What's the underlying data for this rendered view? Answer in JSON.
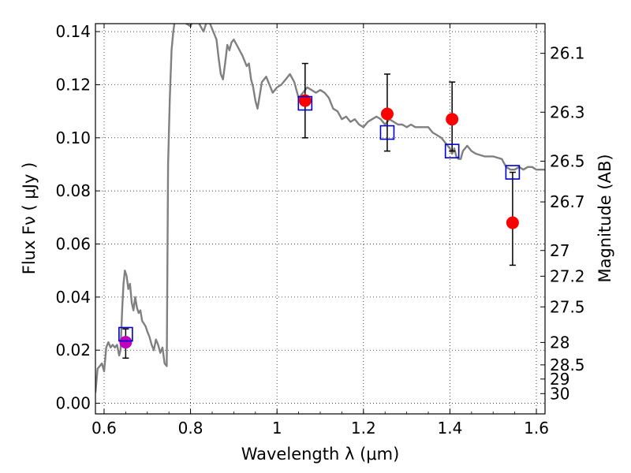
{
  "chart_data": {
    "type": "line",
    "title": "",
    "xlabel": "Wavelength  λ (μm)",
    "ylabel": "Flux  Fν  ( μJy )",
    "y2label": "Magnitude (AB)",
    "xlim": [
      0.58,
      1.62
    ],
    "ylim": [
      -0.004,
      0.143
    ],
    "grid": true,
    "legend": "none",
    "x_ticks": [
      0.6,
      0.8,
      1.0,
      1.2,
      1.4,
      1.6
    ],
    "x_tick_labels": [
      "0.6",
      "0.8",
      "1",
      "1.2",
      "1.4",
      "1.6"
    ],
    "y_ticks": [
      0.0,
      0.02,
      0.04,
      0.06,
      0.08,
      0.1,
      0.12,
      0.14
    ],
    "y_tick_labels": [
      "0.00",
      "0.02",
      "0.04",
      "0.06",
      "0.08",
      "0.10",
      "0.12",
      "0.14"
    ],
    "mag_ticks": [
      "26.1",
      "26.3",
      "26.5",
      "26.7",
      "27",
      "27.2",
      "27.5",
      "28",
      "28.5",
      "29",
      "30"
    ],
    "colors": {
      "model": "#808080",
      "observed": "#ff0000",
      "observed_first": "#bf00bf",
      "synthetic": "#0000cc",
      "errorbar": "#000000"
    },
    "series": [
      {
        "values": [
          [
            0.58,
            0.004
          ],
          [
            0.585,
            0.013
          ],
          [
            0.595,
            0.015
          ],
          [
            0.6,
            0.012
          ],
          [
            0.605,
            0.021
          ],
          [
            0.61,
            0.023
          ],
          [
            0.615,
            0.021
          ],
          [
            0.62,
            0.022
          ],
          [
            0.625,
            0.021
          ],
          [
            0.63,
            0.022
          ],
          [
            0.635,
            0.018
          ],
          [
            0.638,
            0.02
          ],
          [
            0.642,
            0.036
          ],
          [
            0.645,
            0.045
          ],
          [
            0.648,
            0.05
          ],
          [
            0.652,
            0.048
          ],
          [
            0.656,
            0.043
          ],
          [
            0.66,
            0.045
          ],
          [
            0.664,
            0.038
          ],
          [
            0.668,
            0.035
          ],
          [
            0.672,
            0.04
          ],
          [
            0.676,
            0.036
          ],
          [
            0.68,
            0.034
          ],
          [
            0.684,
            0.035
          ],
          [
            0.688,
            0.031
          ],
          [
            0.692,
            0.03
          ],
          [
            0.696,
            0.029
          ],
          [
            0.7,
            0.027
          ],
          [
            0.705,
            0.025
          ],
          [
            0.71,
            0.022
          ],
          [
            0.715,
            0.02
          ],
          [
            0.72,
            0.024
          ],
          [
            0.725,
            0.022
          ],
          [
            0.73,
            0.019
          ],
          [
            0.735,
            0.021
          ],
          [
            0.74,
            0.015
          ],
          [
            0.745,
            0.014
          ],
          [
            0.748,
            0.09
          ],
          [
            0.752,
            0.115
          ],
          [
            0.756,
            0.133
          ],
          [
            0.76,
            0.14
          ],
          [
            0.765,
            0.146
          ],
          [
            0.77,
            0.15
          ],
          [
            0.78,
            0.148
          ],
          [
            0.79,
            0.143
          ],
          [
            0.8,
            0.142
          ],
          [
            0.81,
            0.146
          ],
          [
            0.82,
            0.143
          ],
          [
            0.83,
            0.14
          ],
          [
            0.84,
            0.145
          ],
          [
            0.85,
            0.141
          ],
          [
            0.86,
            0.137
          ],
          [
            0.865,
            0.13
          ],
          [
            0.87,
            0.124
          ],
          [
            0.875,
            0.122
          ],
          [
            0.88,
            0.128
          ],
          [
            0.885,
            0.135
          ],
          [
            0.89,
            0.133
          ],
          [
            0.895,
            0.136
          ],
          [
            0.9,
            0.137
          ],
          [
            0.91,
            0.134
          ],
          [
            0.92,
            0.131
          ],
          [
            0.93,
            0.127
          ],
          [
            0.935,
            0.128
          ],
          [
            0.94,
            0.122
          ],
          [
            0.945,
            0.119
          ],
          [
            0.95,
            0.114
          ],
          [
            0.955,
            0.111
          ],
          [
            0.96,
            0.116
          ],
          [
            0.965,
            0.121
          ],
          [
            0.97,
            0.122
          ],
          [
            0.975,
            0.123
          ],
          [
            0.98,
            0.121
          ],
          [
            0.985,
            0.119
          ],
          [
            0.99,
            0.117
          ],
          [
            0.995,
            0.118
          ],
          [
            1.0,
            0.119
          ],
          [
            1.01,
            0.12
          ],
          [
            1.02,
            0.122
          ],
          [
            1.03,
            0.124
          ],
          [
            1.04,
            0.121
          ],
          [
            1.05,
            0.115
          ],
          [
            1.06,
            0.117
          ],
          [
            1.07,
            0.119
          ],
          [
            1.08,
            0.118
          ],
          [
            1.09,
            0.117
          ],
          [
            1.1,
            0.118
          ],
          [
            1.11,
            0.117
          ],
          [
            1.12,
            0.115
          ],
          [
            1.13,
            0.111
          ],
          [
            1.14,
            0.11
          ],
          [
            1.15,
            0.107
          ],
          [
            1.16,
            0.108
          ],
          [
            1.17,
            0.106
          ],
          [
            1.18,
            0.107
          ],
          [
            1.19,
            0.105
          ],
          [
            1.2,
            0.104
          ],
          [
            1.21,
            0.106
          ],
          [
            1.22,
            0.107
          ],
          [
            1.23,
            0.108
          ],
          [
            1.24,
            0.107
          ],
          [
            1.25,
            0.105
          ],
          [
            1.26,
            0.107
          ],
          [
            1.27,
            0.106
          ],
          [
            1.28,
            0.105
          ],
          [
            1.29,
            0.105
          ],
          [
            1.3,
            0.104
          ],
          [
            1.31,
            0.105
          ],
          [
            1.32,
            0.104
          ],
          [
            1.33,
            0.104
          ],
          [
            1.34,
            0.104
          ],
          [
            1.35,
            0.104
          ],
          [
            1.36,
            0.102
          ],
          [
            1.37,
            0.101
          ],
          [
            1.38,
            0.1
          ],
          [
            1.39,
            0.098
          ],
          [
            1.4,
            0.096
          ],
          [
            1.405,
            0.094
          ],
          [
            1.41,
            0.096
          ],
          [
            1.415,
            0.093
          ],
          [
            1.42,
            0.092
          ],
          [
            1.425,
            0.092
          ],
          [
            1.43,
            0.095
          ],
          [
            1.44,
            0.097
          ],
          [
            1.45,
            0.095
          ],
          [
            1.46,
            0.094
          ],
          [
            1.48,
            0.093
          ],
          [
            1.5,
            0.093
          ],
          [
            1.52,
            0.092
          ],
          [
            1.53,
            0.089
          ],
          [
            1.54,
            0.088
          ],
          [
            1.55,
            0.088
          ],
          [
            1.56,
            0.089
          ],
          [
            1.57,
            0.088
          ],
          [
            1.58,
            0.089
          ],
          [
            1.59,
            0.089
          ],
          [
            1.6,
            0.088
          ],
          [
            1.62,
            0.088
          ]
        ]
      },
      {
        "values": [
          {
            "x": 0.65,
            "y": 0.023,
            "err_low": 0.006,
            "err_high": 0.005
          },
          {
            "x": 1.065,
            "y": 0.114,
            "err_low": 0.014,
            "err_high": 0.014
          },
          {
            "x": 1.255,
            "y": 0.109,
            "err_low": 0.014,
            "err_high": 0.015
          },
          {
            "x": 1.405,
            "y": 0.107,
            "err_low": 0.012,
            "err_high": 0.014
          },
          {
            "x": 1.545,
            "y": 0.068,
            "err_low": 0.016,
            "err_high": 0.019
          }
        ]
      },
      {
        "values": [
          {
            "x": 0.65,
            "y": 0.026
          },
          {
            "x": 1.065,
            "y": 0.113
          },
          {
            "x": 1.255,
            "y": 0.102
          },
          {
            "x": 1.405,
            "y": 0.095
          },
          {
            "x": 1.545,
            "y": 0.087
          }
        ]
      }
    ]
  }
}
